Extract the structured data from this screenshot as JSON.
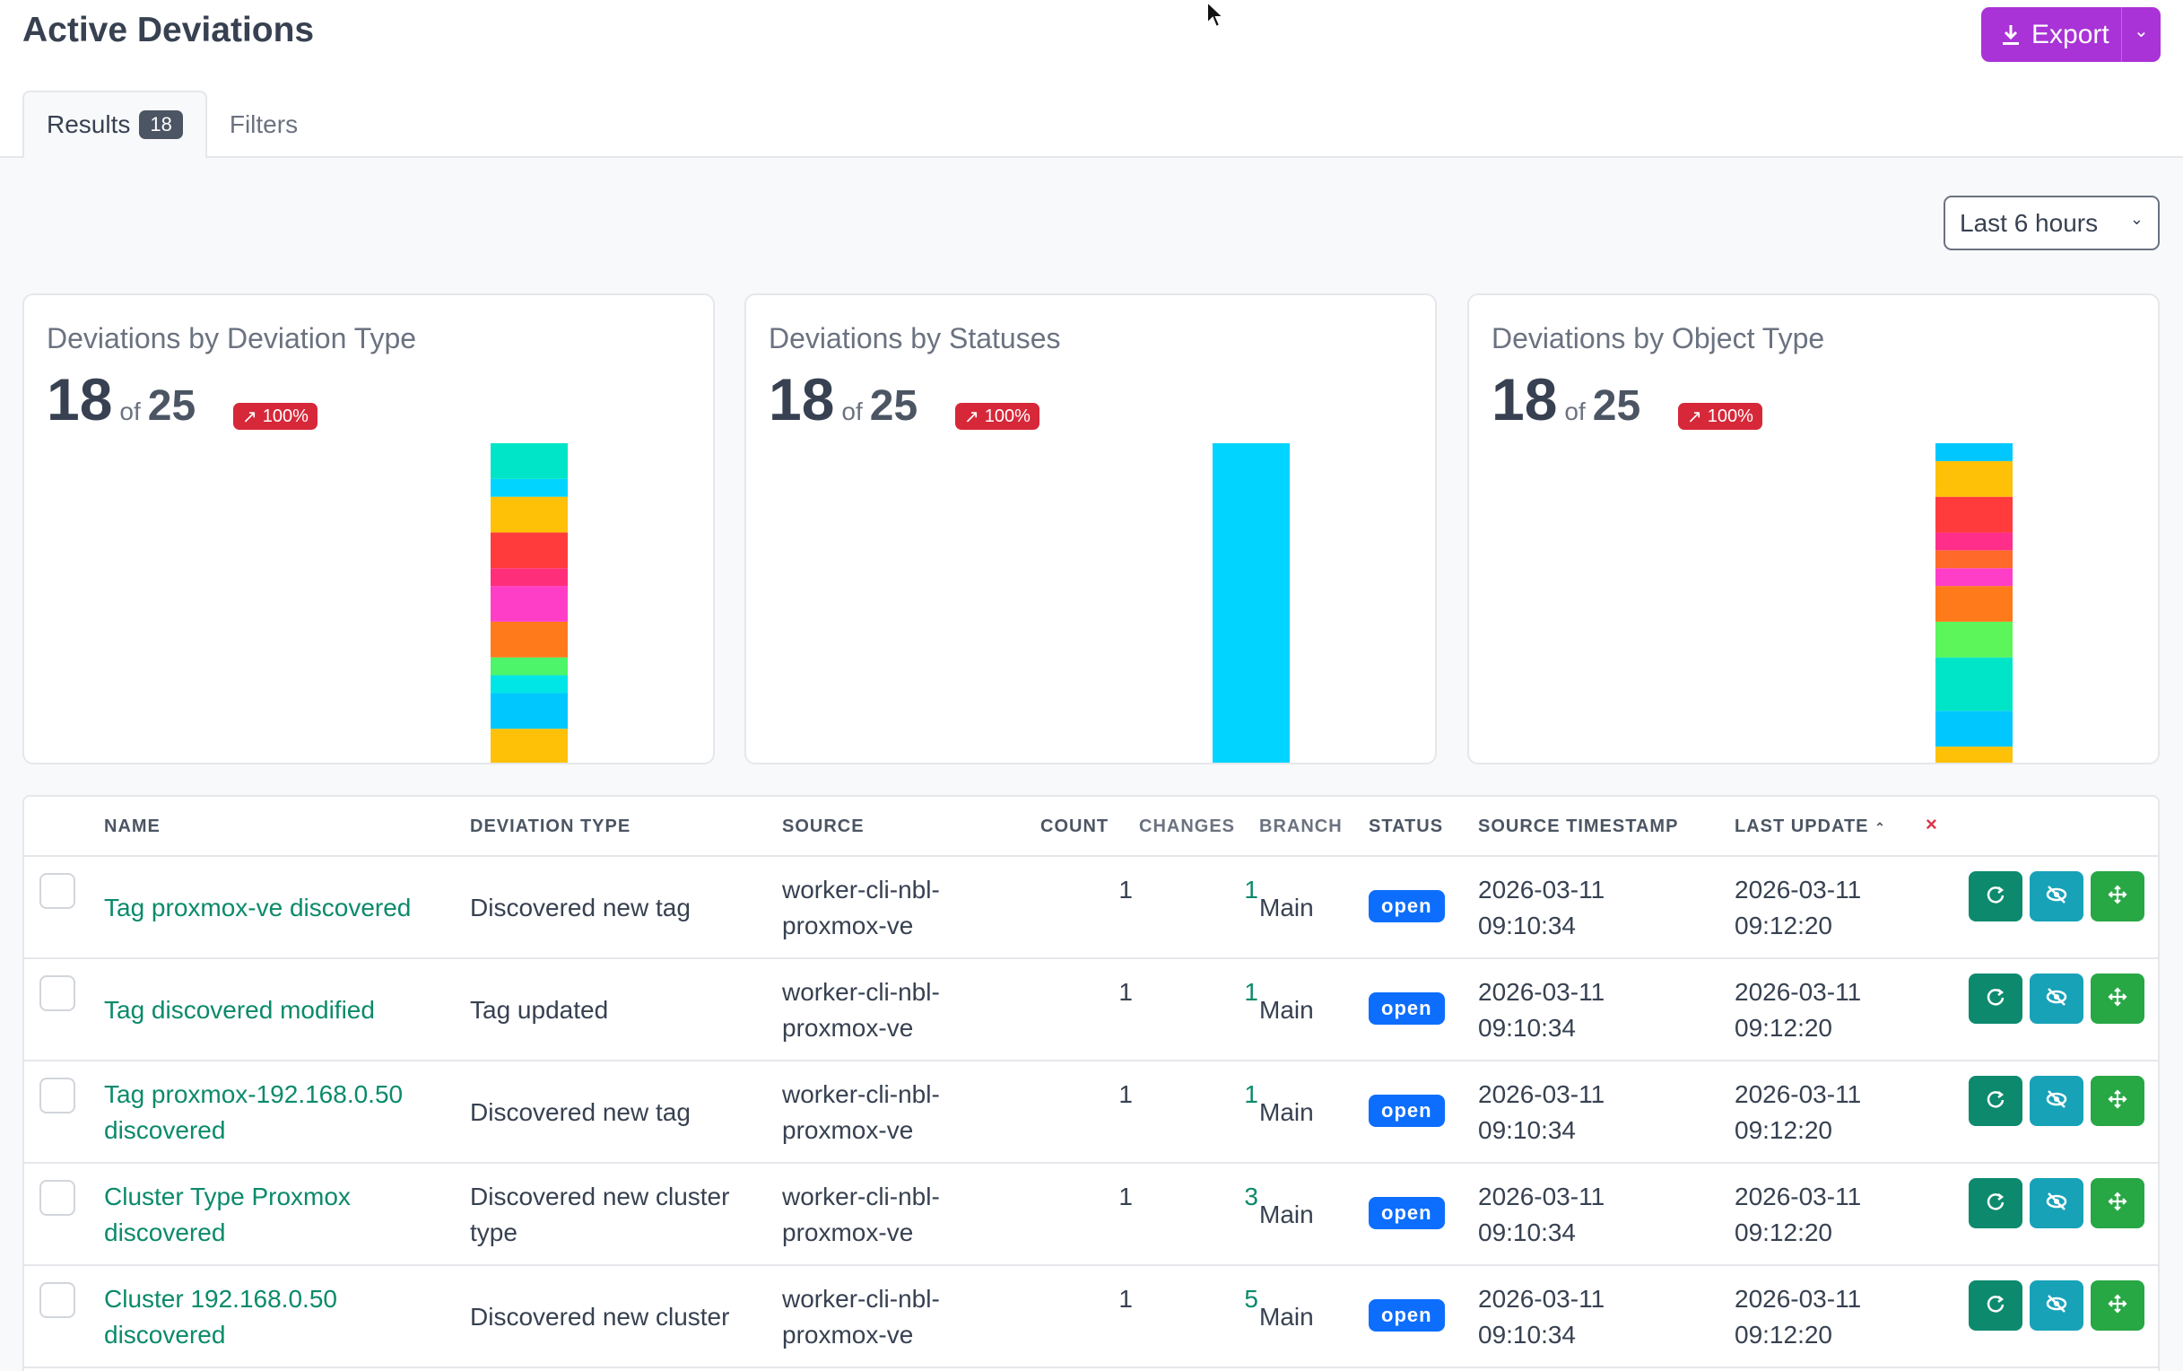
{
  "header": {
    "title": "Active Deviations",
    "export_label": "Export"
  },
  "tabs": [
    {
      "label": "Results",
      "badge": "18"
    },
    {
      "label": "Filters"
    }
  ],
  "time_range": "Last 6 hours",
  "cards": [
    {
      "title": "Deviations by Deviation Type",
      "count": "18",
      "of": "of",
      "total": "25",
      "trend": "100%",
      "segments": [
        {
          "value": 1,
          "color": "#ffc107"
        },
        {
          "value": 1,
          "color": "#00c8ff"
        },
        {
          "value": 0.5,
          "color": "#00e5e5"
        },
        {
          "value": 0.5,
          "color": "#4cf56a"
        },
        {
          "value": 1,
          "color": "#ff7a1a"
        },
        {
          "value": 1,
          "color": "#ff3ec8"
        },
        {
          "value": 0.5,
          "color": "#ff2e7a"
        },
        {
          "value": 1,
          "color": "#ff3b3b"
        },
        {
          "value": 1,
          "color": "#ffc107"
        },
        {
          "value": 0.5,
          "color": "#00d4ff"
        },
        {
          "value": 1,
          "color": "#00e5c8"
        }
      ]
    },
    {
      "title": "Deviations by Statuses",
      "count": "18",
      "of": "of",
      "total": "25",
      "trend": "100%",
      "segments": [
        {
          "value": 18,
          "color": "#00d4ff"
        }
      ]
    },
    {
      "title": "Deviations by Object Type",
      "count": "18",
      "of": "of",
      "total": "25",
      "trend": "100%",
      "segments": [
        {
          "value": 0.5,
          "color": "#ffc107"
        },
        {
          "value": 1,
          "color": "#00c8ff"
        },
        {
          "value": 1.5,
          "color": "#00e5c8"
        },
        {
          "value": 1,
          "color": "#5cf55a"
        },
        {
          "value": 1,
          "color": "#ff7a1a"
        },
        {
          "value": 0.5,
          "color": "#ff3ec8"
        },
        {
          "value": 0.5,
          "color": "#ff6a2a"
        },
        {
          "value": 0.5,
          "color": "#ff2e8a"
        },
        {
          "value": 1,
          "color": "#ff3b3b"
        },
        {
          "value": 1,
          "color": "#ffc107"
        },
        {
          "value": 0.5,
          "color": "#00c8ff"
        }
      ]
    }
  ],
  "table": {
    "columns": [
      "NAME",
      "DEVIATION TYPE",
      "SOURCE",
      "COUNT",
      "CHANGES",
      "BRANCH",
      "STATUS",
      "SOURCE TIMESTAMP",
      "LAST UPDATE",
      "×"
    ],
    "rows": [
      {
        "name": [
          "Tag proxmox-ve discovered"
        ],
        "type": [
          "Discovered new tag"
        ],
        "source": [
          "worker-cli-nbl-",
          "proxmox-ve"
        ],
        "count": "1",
        "changes": "1",
        "branch": "Main",
        "status": "open",
        "source_ts": [
          "2026-03-11",
          "09:10:34"
        ],
        "last_update": [
          "2026-03-11",
          "09:12:20"
        ]
      },
      {
        "name": [
          "Tag discovered modified"
        ],
        "type": [
          "Tag updated"
        ],
        "source": [
          "worker-cli-nbl-",
          "proxmox-ve"
        ],
        "count": "1",
        "changes": "1",
        "branch": "Main",
        "status": "open",
        "source_ts": [
          "2026-03-11",
          "09:10:34"
        ],
        "last_update": [
          "2026-03-11",
          "09:12:20"
        ]
      },
      {
        "name": [
          "Tag proxmox-192.168.0.50",
          "discovered"
        ],
        "type": [
          "Discovered new tag"
        ],
        "source": [
          "worker-cli-nbl-",
          "proxmox-ve"
        ],
        "count": "1",
        "changes": "1",
        "branch": "Main",
        "status": "open",
        "source_ts": [
          "2026-03-11",
          "09:10:34"
        ],
        "last_update": [
          "2026-03-11",
          "09:12:20"
        ]
      },
      {
        "name": [
          "Cluster Type Proxmox",
          "discovered"
        ],
        "type": [
          "Discovered new cluster",
          "type"
        ],
        "source": [
          "worker-cli-nbl-",
          "proxmox-ve"
        ],
        "count": "1",
        "changes": "3",
        "branch": "Main",
        "status": "open",
        "source_ts": [
          "2026-03-11",
          "09:10:34"
        ],
        "last_update": [
          "2026-03-11",
          "09:12:20"
        ]
      },
      {
        "name": [
          "Cluster 192.168.0.50",
          "discovered"
        ],
        "type": [
          "Discovered new cluster"
        ],
        "source": [
          "worker-cli-nbl-",
          "proxmox-ve"
        ],
        "count": "1",
        "changes": "5",
        "branch": "Main",
        "status": "open",
        "source_ts": [
          "2026-03-11",
          "09:10:34"
        ],
        "last_update": [
          "2026-03-11",
          "09:12:20"
        ]
      }
    ]
  }
}
